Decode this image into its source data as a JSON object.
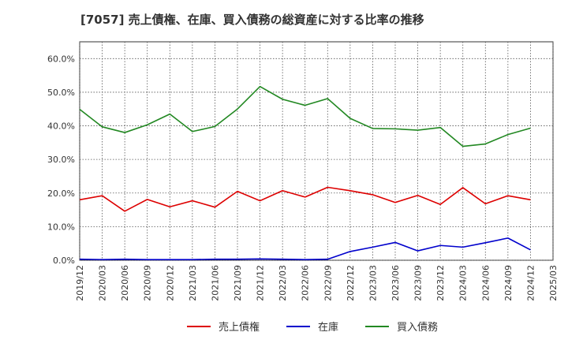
{
  "chart_data": {
    "type": "line",
    "title": "[7057]  売上債権、在庫、買入債務の総資産に対する比率の推移",
    "xlabel": "",
    "ylabel": "",
    "ylim": [
      0,
      0.65
    ],
    "yticks": [
      0.0,
      0.1,
      0.2,
      0.3,
      0.4,
      0.5,
      0.6
    ],
    "ytick_labels": [
      "0.0%",
      "10.0%",
      "20.0%",
      "30.0%",
      "40.0%",
      "50.0%",
      "60.0%"
    ],
    "categories": [
      "2019/12",
      "2020/03",
      "2020/06",
      "2020/09",
      "2020/12",
      "2021/03",
      "2021/06",
      "2021/09",
      "2021/12",
      "2022/03",
      "2022/06",
      "2022/09",
      "2022/12",
      "2023/03",
      "2023/06",
      "2023/09",
      "2023/12",
      "2024/03",
      "2024/06",
      "2024/09",
      "2024/12",
      "2025/03"
    ],
    "series": [
      {
        "name": "売上債権",
        "color": "#dd0000",
        "values": [
          0.18,
          0.192,
          0.146,
          0.181,
          0.159,
          0.177,
          0.158,
          0.205,
          0.177,
          0.207,
          0.188,
          0.217,
          0.207,
          0.195,
          0.172,
          0.193,
          0.166,
          0.216,
          0.168,
          0.192,
          0.18,
          null
        ]
      },
      {
        "name": "在庫",
        "color": "#0000cc",
        "values": [
          0.003,
          0.002,
          0.003,
          0.002,
          0.002,
          0.002,
          0.003,
          0.003,
          0.004,
          0.003,
          0.002,
          0.003,
          0.026,
          0.039,
          0.053,
          0.028,
          0.044,
          0.039,
          0.052,
          0.066,
          0.031,
          null
        ]
      },
      {
        "name": "買入債務",
        "color": "#228822",
        "values": [
          0.449,
          0.397,
          0.38,
          0.403,
          0.435,
          0.383,
          0.398,
          0.45,
          0.517,
          0.479,
          0.461,
          0.481,
          0.422,
          0.392,
          0.391,
          0.387,
          0.395,
          0.339,
          0.346,
          0.374,
          0.393,
          null
        ]
      }
    ],
    "grid": true,
    "legend": "bottom"
  }
}
